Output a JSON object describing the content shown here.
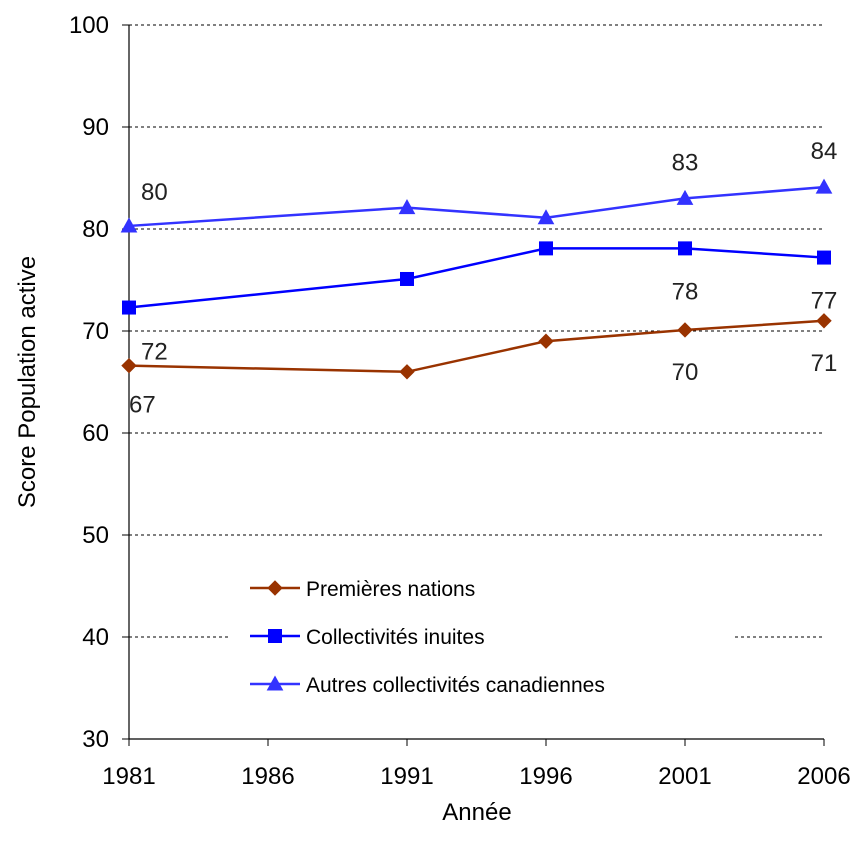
{
  "chart_data": {
    "type": "line",
    "title": "",
    "xlabel": "Année",
    "ylabel": "Score Population active",
    "x": [
      1981,
      1991,
      1996,
      2001,
      2006
    ],
    "x_ticks": [
      "1981",
      "1986",
      "1991",
      "1996",
      "2001",
      "2006"
    ],
    "xlim": [
      1981,
      2006
    ],
    "y_ticks": [
      "30",
      "40",
      "50",
      "60",
      "70",
      "80",
      "90",
      "100"
    ],
    "ylim": [
      30,
      100
    ],
    "grid": "horizontal dashed",
    "legend_position": "bottom-center",
    "series": [
      {
        "name": "Premières nations",
        "color": "#993300",
        "marker": "diamond",
        "values": [
          66.6,
          66.0,
          69.0,
          70.1,
          71.0
        ],
        "labels": [
          "67",
          "",
          "",
          "70",
          "71"
        ]
      },
      {
        "name": "Collectivités inuites",
        "color": "#0000FF",
        "marker": "square",
        "values": [
          72.3,
          75.1,
          78.1,
          78.1,
          77.2
        ],
        "labels": [
          "72",
          "",
          "",
          "78",
          "77"
        ]
      },
      {
        "name": "Autres collectivités canadiennes",
        "color": "#3333FF",
        "marker": "triangle",
        "values": [
          80.3,
          82.1,
          81.1,
          83.0,
          84.1
        ],
        "labels": [
          "80",
          "",
          "",
          "83",
          "84"
        ]
      }
    ]
  }
}
